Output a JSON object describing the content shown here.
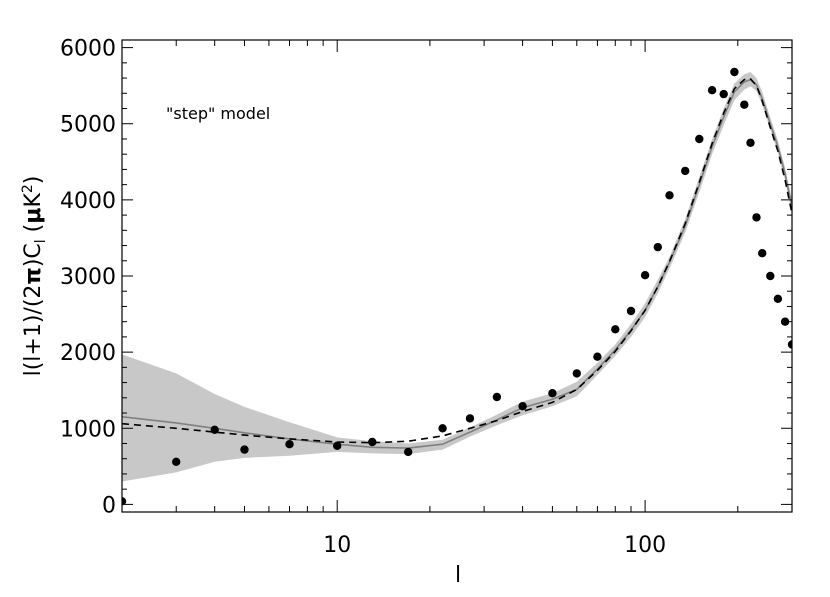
{
  "chart_data": {
    "type": "line",
    "annotation": "\"step\" model",
    "xlabel": "l",
    "ylabel": {
      "prefix": "l(l+1)/(2",
      "pi": "π",
      "mid": ")C",
      "sub": "l",
      "unit_open": " (",
      "mu": "μ",
      "unit_k": "K",
      "sup": "2",
      "unit_close": ")"
    },
    "x_scale": "log",
    "xlim": [
      2,
      300
    ],
    "ylim": [
      -100,
      6100
    ],
    "xticks": [
      10,
      100
    ],
    "yticks": [
      0,
      1000,
      2000,
      3000,
      4000,
      5000,
      6000
    ],
    "grid": false,
    "colors": {
      "band": "#c8c8c8",
      "solid": "#808080",
      "dashed": "#000000",
      "points": "#000000"
    },
    "series": [
      {
        "style": "shaded-band",
        "x": [
          2,
          3,
          4,
          5,
          7,
          10,
          13,
          17,
          22,
          27,
          33,
          40,
          50,
          60,
          70,
          80,
          90,
          100,
          110,
          120,
          135,
          150,
          165,
          180,
          195,
          210,
          220,
          230,
          240,
          255,
          270,
          285,
          300
        ],
        "upper": [
          1970,
          1720,
          1450,
          1280,
          1080,
          880,
          830,
          800,
          850,
          1010,
          1180,
          1350,
          1460,
          1610,
          1860,
          2100,
          2370,
          2640,
          2950,
          3250,
          3750,
          4300,
          4800,
          5200,
          5530,
          5650,
          5680,
          5600,
          5420,
          5080,
          4780,
          4420,
          4010
        ],
        "lower": [
          300,
          420,
          560,
          610,
          640,
          690,
          670,
          660,
          720,
          890,
          1040,
          1170,
          1290,
          1420,
          1700,
          1950,
          2200,
          2460,
          2770,
          3100,
          3570,
          4100,
          4600,
          4980,
          5310,
          5450,
          5490,
          5430,
          5250,
          4920,
          4620,
          4260,
          3820
        ]
      },
      {
        "style": "solid",
        "x": [
          2,
          3,
          4,
          5,
          7,
          10,
          13,
          17,
          22,
          27,
          33,
          40,
          50,
          60,
          70,
          80,
          90,
          100,
          110,
          120,
          135,
          150,
          165,
          180,
          195,
          210,
          220,
          230,
          240,
          255,
          270,
          285,
          300
        ],
        "y": [
          1150,
          1070,
          1000,
          940,
          860,
          790,
          750,
          740,
          790,
          950,
          1110,
          1270,
          1380,
          1510,
          1780,
          2030,
          2290,
          2550,
          2860,
          3180,
          3660,
          4200,
          4700,
          5090,
          5420,
          5550,
          5580,
          5510,
          5330,
          5000,
          4700,
          4340,
          3910
        ]
      },
      {
        "style": "dashed",
        "x": [
          2,
          3,
          4,
          5,
          7,
          10,
          13,
          17,
          22,
          27,
          33,
          40,
          50,
          60,
          70,
          80,
          90,
          100,
          110,
          120,
          135,
          150,
          165,
          180,
          195,
          210,
          220,
          230,
          240,
          255,
          270,
          285,
          300
        ],
        "y": [
          1060,
          1000,
          950,
          910,
          860,
          820,
          810,
          830,
          900,
          1000,
          1100,
          1220,
          1340,
          1510,
          1760,
          2010,
          2280,
          2550,
          2860,
          3190,
          3690,
          4230,
          4740,
          5140,
          5460,
          5580,
          5590,
          5500,
          5300,
          4950,
          4640,
          4260,
          3820
        ]
      },
      {
        "style": "points",
        "x": [
          2,
          3,
          4,
          5,
          7,
          10,
          13,
          17,
          22,
          27,
          33,
          40,
          50,
          60,
          70,
          80,
          90,
          100,
          110,
          120,
          135,
          150,
          165,
          180,
          195,
          210,
          220,
          230,
          240,
          255,
          270,
          285,
          300
        ],
        "y": [
          40,
          560,
          980,
          720,
          790,
          770,
          820,
          690,
          1000,
          1130,
          1410,
          1290,
          1460,
          1720,
          1940,
          2300,
          2540,
          3010,
          3380,
          4060,
          4380,
          4800,
          5440,
          5390,
          5680,
          5250,
          4750,
          3770,
          3300,
          3000,
          2700,
          2400,
          2100
        ]
      }
    ]
  }
}
